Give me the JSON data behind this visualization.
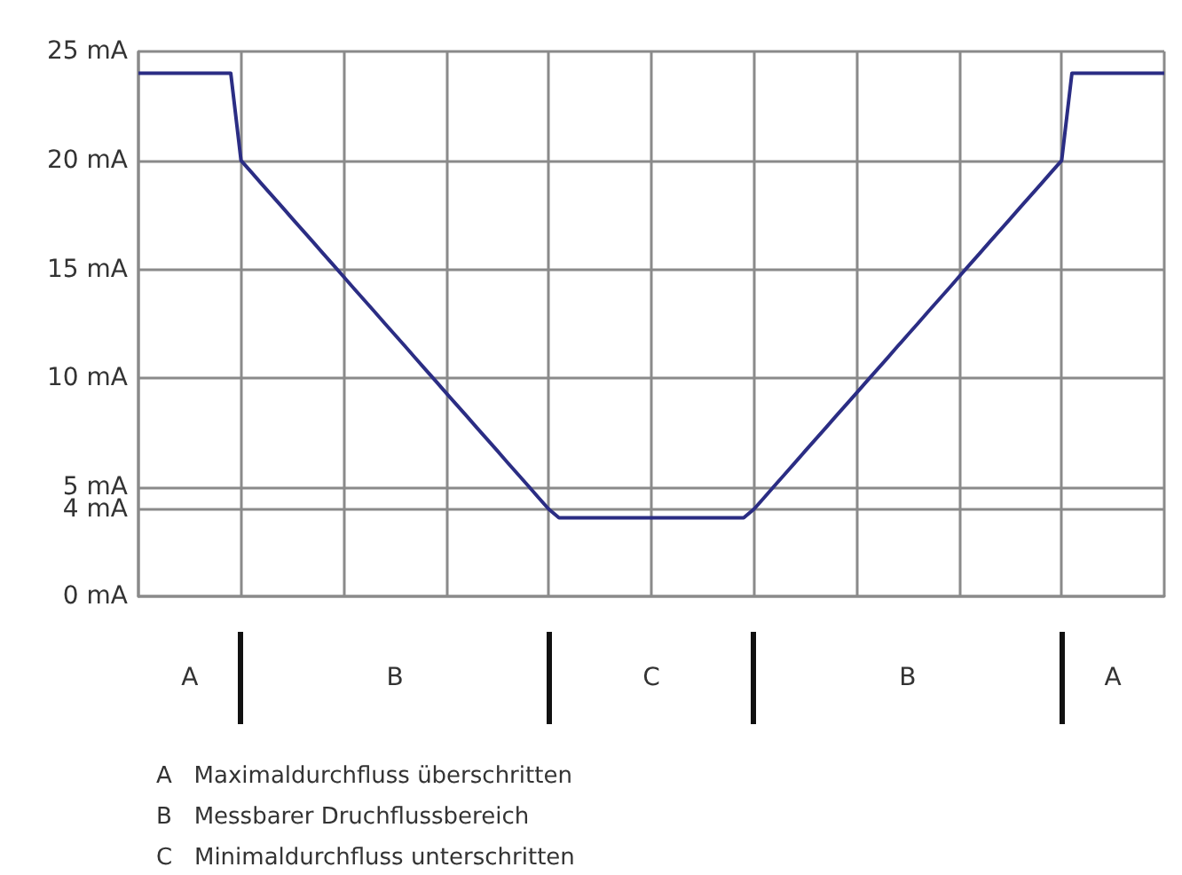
{
  "chart_data": {
    "type": "line",
    "categories": [
      null,
      null,
      null,
      null,
      null,
      null,
      null,
      null,
      null,
      null,
      null,
      null,
      null,
      null,
      null,
      null,
      null,
      null,
      null,
      null,
      null,
      null,
      null,
      null,
      null,
      null,
      null,
      null,
      null,
      null,
      null,
      null,
      null,
      null,
      null,
      null,
      null,
      null,
      null,
      null,
      null,
      null,
      null,
      null,
      null,
      null,
      null,
      null,
      null,
      null,
      null,
      null,
      null,
      null,
      null,
      null,
      null,
      null,
      null,
      null,
      null,
      null,
      null,
      null,
      null,
      null,
      null,
      null,
      null,
      null,
      null,
      null,
      null,
      null,
      null,
      null,
      null,
      null,
      null,
      null,
      null,
      null,
      null,
      null,
      null,
      null,
      null,
      null,
      null,
      null,
      null,
      null,
      null,
      null,
      null,
      null,
      null,
      null,
      null,
      null,
      null
    ],
    "series": [
      {
        "color": "#2b2d84",
        "values": [
          24,
          24,
          24,
          24,
          24,
          24,
          24,
          24,
          24,
          24,
          20,
          19.47,
          18.93,
          18.4,
          17.87,
          17.33,
          16.8,
          16.27,
          15.73,
          15.2,
          14.67,
          14.13,
          13.6,
          13.07,
          12.53,
          12,
          11.47,
          10.93,
          10.4,
          9.87,
          9.33,
          8.8,
          8.27,
          7.73,
          7.2,
          6.67,
          6.13,
          5.6,
          5.07,
          4.53,
          4,
          3.6,
          3.6,
          3.6,
          3.6,
          3.6,
          3.6,
          3.6,
          3.6,
          3.6,
          3.6,
          3.6,
          3.6,
          3.6,
          3.6,
          3.6,
          3.6,
          3.6,
          3.6,
          3.6,
          4,
          4.53,
          5.07,
          5.6,
          6.13,
          6.67,
          7.2,
          7.73,
          8.27,
          8.8,
          9.33,
          9.87,
          10.4,
          10.93,
          11.47,
          12,
          12.53,
          13.07,
          13.6,
          14.13,
          14.67,
          15.2,
          15.73,
          16.27,
          16.8,
          17.33,
          17.87,
          18.4,
          18.93,
          19.47,
          20,
          24,
          24,
          24,
          24,
          24,
          24,
          24,
          24,
          24,
          24
        ]
      }
    ],
    "ylim": [
      0,
      25
    ],
    "yticks": [
      {
        "value": 0,
        "label": "0 mA"
      },
      {
        "value": 4,
        "label": "4 mA"
      },
      {
        "value": 5,
        "label": "5 mA"
      },
      {
        "value": 10,
        "label": "10 mA"
      },
      {
        "value": 15,
        "label": "15 mA"
      },
      {
        "value": 20,
        "label": "20 mA"
      },
      {
        "value": 25,
        "label": "25 mA"
      }
    ],
    "tick_labels": "y",
    "grid": true,
    "line_style": "solid",
    "annotations": [
      "A",
      "B",
      "C",
      "B",
      "A",
      "A   Maximaldurchfluss überschritten",
      "B   Messbarer Druchflussbereich",
      "C   Minimaldurchfluss unterschritten"
    ]
  }
}
